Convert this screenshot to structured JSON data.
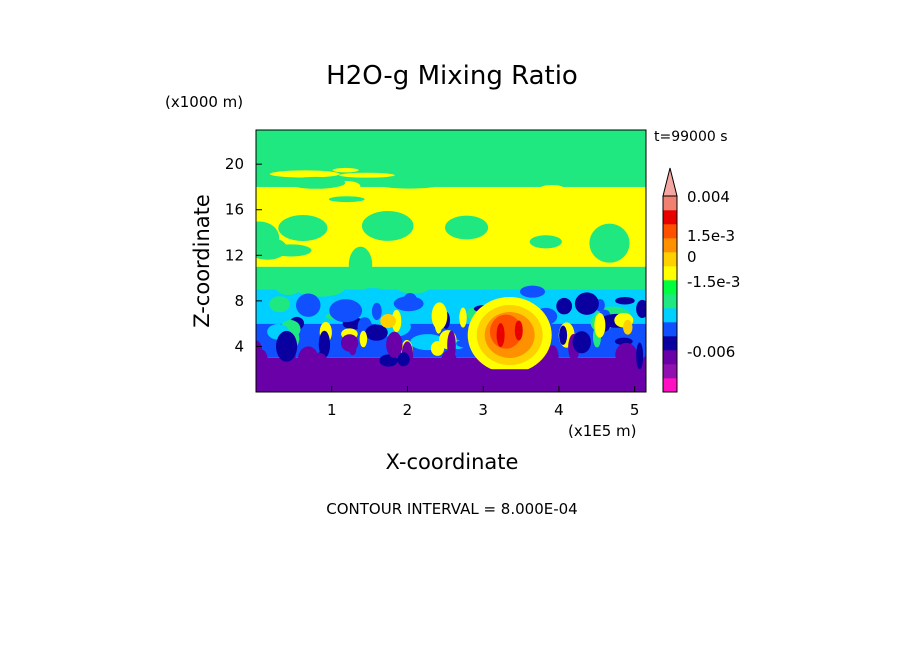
{
  "chart_data": {
    "type": "heatmap",
    "title": "H2O-g Mixing Ratio",
    "xlabel": "X-coordinate",
    "ylabel": "Z-coordinate",
    "x_unit": "(x1E5 m)",
    "y_unit": "(x1000 m)",
    "time_label": "t=99000 s",
    "footer": "CONTOUR INTERVAL = 8.000E-04",
    "xlim": [
      0,
      5.15
    ],
    "ylim": [
      0,
      23
    ],
    "x_ticks": [
      1,
      2,
      3,
      4,
      5
    ],
    "x_tick_labels": [
      "1",
      "2",
      "3",
      "4",
      "5"
    ],
    "y_ticks": [
      4,
      8,
      12,
      16,
      20
    ],
    "y_tick_labels": [
      "4",
      "8",
      "12",
      "16",
      "20"
    ],
    "colorbar": {
      "levels": [
        {
          "color": "#ff10c0"
        },
        {
          "color": "#9010b0"
        },
        {
          "color": "#6a00a8"
        },
        {
          "color": "#0a00a0"
        },
        {
          "color": "#1050ff"
        },
        {
          "color": "#00d0ff"
        },
        {
          "color": "#20e880"
        },
        {
          "color": "#00ff40"
        },
        {
          "color": "#ffff00"
        },
        {
          "color": "#ffd000"
        },
        {
          "color": "#ff9000"
        },
        {
          "color": "#ff5000"
        },
        {
          "color": "#e80000"
        },
        {
          "color": "#f08070"
        }
      ],
      "tick_labels": [
        "0.004",
        "1.5e-3",
        "0",
        "-1.5e-3",
        "-0.006"
      ],
      "extend_arrow_color": "#f4a6a0"
    },
    "field_regions": [
      {
        "desc": "low-level dry layer",
        "color": "#6a00a8",
        "z": [
          0,
          3
        ],
        "x": [
          0,
          5.15
        ]
      },
      {
        "desc": "mid-level mixed layer",
        "color": "#1050ff",
        "z": [
          3,
          6
        ],
        "x": [
          0,
          5.15
        ]
      },
      {
        "desc": "cyan band",
        "color": "#00d0ff",
        "z": [
          6,
          9
        ],
        "x": [
          0,
          5.15
        ]
      },
      {
        "desc": "green layer",
        "color": "#20e880",
        "z": [
          9,
          11
        ],
        "x": [
          0,
          5.15
        ]
      },
      {
        "desc": "upper moist yellow layer",
        "color": "#ffff00",
        "z": [
          11,
          18
        ],
        "x": [
          0,
          5.15
        ]
      },
      {
        "desc": "top green layer",
        "color": "#20e880",
        "z": [
          18,
          23
        ],
        "x": [
          0,
          5.15
        ]
      },
      {
        "desc": "convective plume core",
        "color": "#e80000",
        "z": [
          3,
          7
        ],
        "x": [
          3.1,
          3.6
        ]
      }
    ]
  }
}
